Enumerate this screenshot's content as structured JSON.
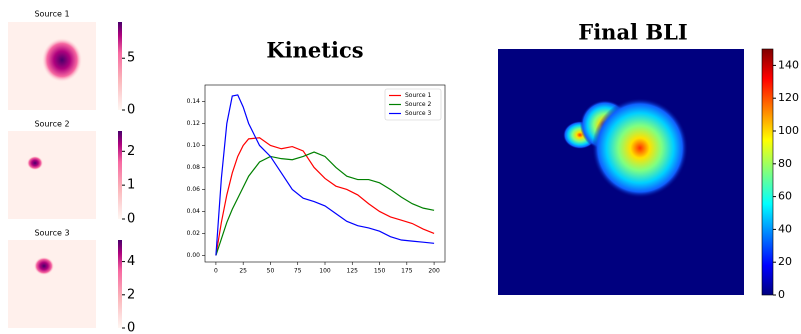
{
  "chart_data": [
    {
      "type": "heatmap",
      "title": "Source 1",
      "ylim": [
        0,
        8.5
      ],
      "yticks": [
        0,
        5
      ]
    },
    {
      "type": "heatmap",
      "title": "Source 2",
      "ylim": [
        0,
        2.6
      ],
      "yticks": [
        0,
        1,
        2
      ]
    },
    {
      "type": "heatmap",
      "title": "Source 3",
      "ylim": [
        0,
        5.3
      ],
      "yticks": [
        0,
        2,
        4
      ]
    },
    {
      "type": "line",
      "title": "Kinetics",
      "x": [
        0,
        5,
        10,
        15,
        20,
        25,
        30,
        40,
        50,
        60,
        70,
        80,
        90,
        100,
        110,
        120,
        130,
        140,
        150,
        160,
        170,
        180,
        190,
        200
      ],
      "series": [
        {
          "name": "Source 1",
          "color": "#ff0000",
          "values": [
            0,
            0.03,
            0.055,
            0.075,
            0.09,
            0.1,
            0.106,
            0.107,
            0.1,
            0.097,
            0.099,
            0.095,
            0.08,
            0.07,
            0.063,
            0.06,
            0.055,
            0.047,
            0.04,
            0.035,
            0.032,
            0.029,
            0.024,
            0.02
          ]
        },
        {
          "name": "Source 2",
          "color": "#008000",
          "values": [
            0,
            0.015,
            0.03,
            0.042,
            0.052,
            0.062,
            0.072,
            0.085,
            0.09,
            0.088,
            0.087,
            0.09,
            0.094,
            0.09,
            0.08,
            0.072,
            0.069,
            0.069,
            0.066,
            0.06,
            0.053,
            0.047,
            0.043,
            0.041
          ]
        },
        {
          "name": "Source 3",
          "color": "#0000ff",
          "values": [
            0,
            0.07,
            0.12,
            0.145,
            0.146,
            0.135,
            0.12,
            0.1,
            0.09,
            0.075,
            0.06,
            0.052,
            0.049,
            0.045,
            0.038,
            0.031,
            0.027,
            0.025,
            0.022,
            0.017,
            0.014,
            0.013,
            0.012,
            0.011
          ]
        }
      ],
      "xlim": [
        -10,
        210
      ],
      "xticks": [
        0,
        25,
        50,
        75,
        100,
        125,
        150,
        175,
        200
      ],
      "ylim": [
        -0.006,
        0.155
      ],
      "yticks": [
        {
          "value": 0,
          "label": "0.00"
        },
        {
          "value": 0.02,
          "label": "0.02"
        },
        {
          "value": 0.04,
          "label": "0.04"
        },
        {
          "value": 0.06,
          "label": "0.06"
        },
        {
          "value": 0.08,
          "label": "0.08"
        },
        {
          "value": 0.1,
          "label": "0.10"
        },
        {
          "value": 0.12,
          "label": "0.12"
        },
        {
          "value": 0.14,
          "label": "0.14"
        }
      ],
      "legend": "upper right"
    },
    {
      "type": "heatmap",
      "title": "Final BLI",
      "ylim": [
        0,
        150
      ],
      "yticks": [
        0,
        20,
        40,
        60,
        80,
        100,
        120,
        140
      ]
    }
  ]
}
